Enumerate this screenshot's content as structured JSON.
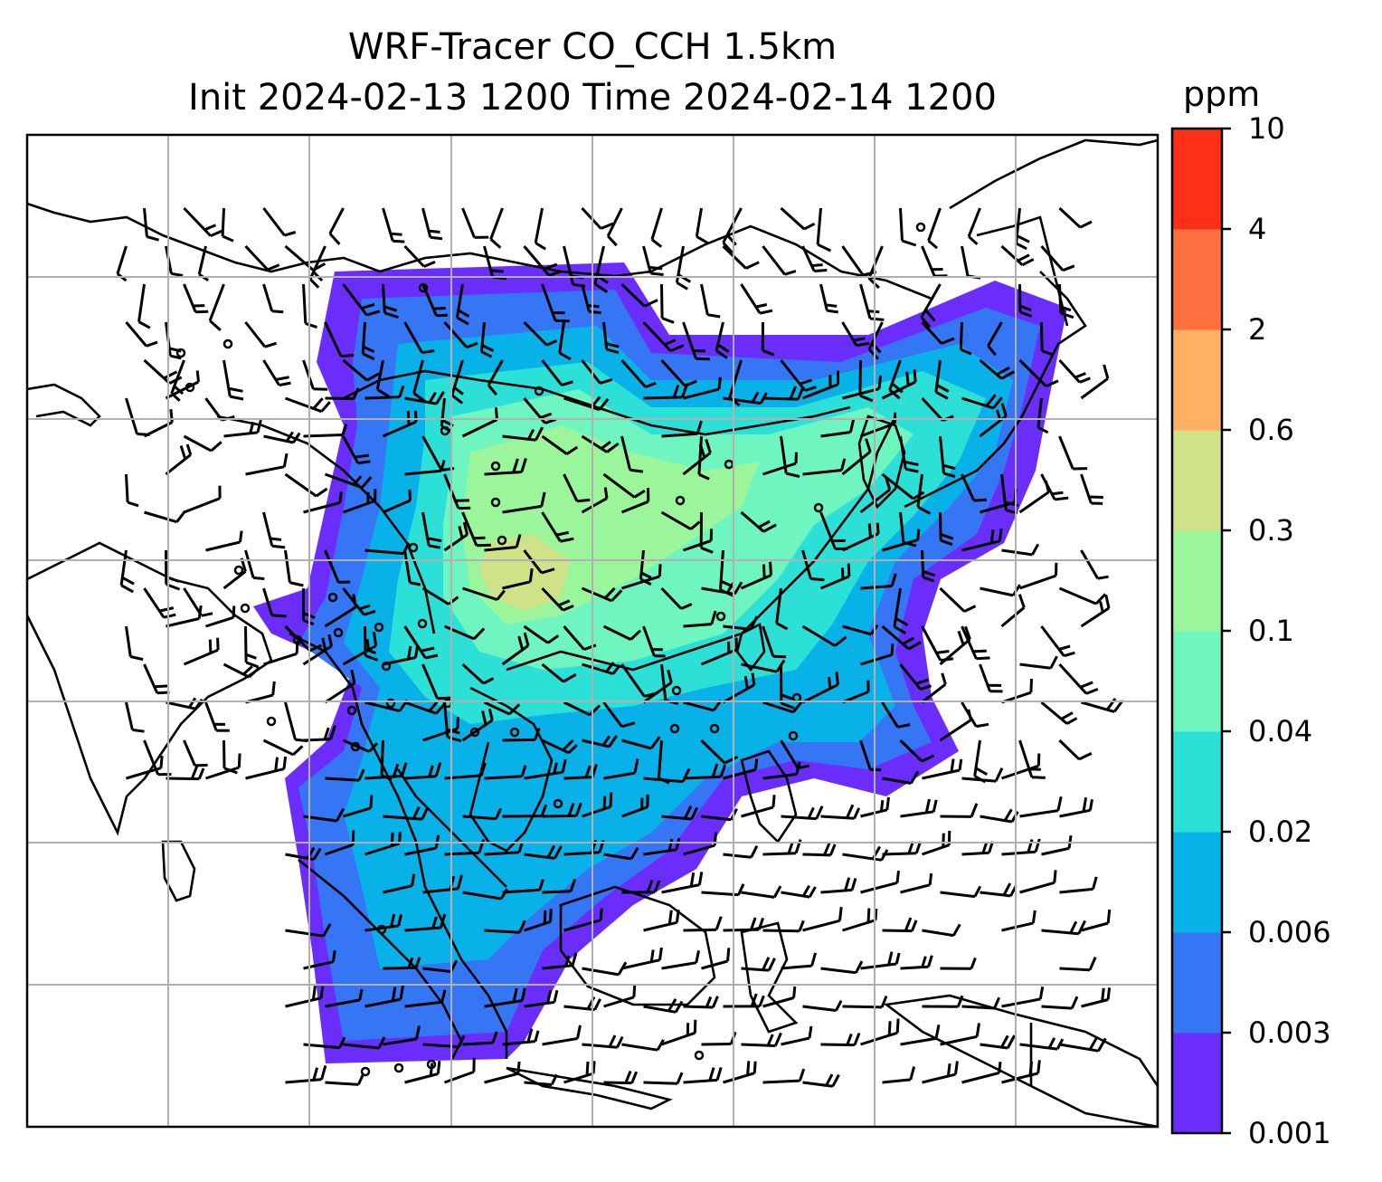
{
  "title_line1": "WRF-Tracer CO_CCH 1.5km",
  "title_line2": "Init 2024-02-13 1200 Time 2024-02-14 1200",
  "colorbar": {
    "units": "ppm",
    "ticks": [
      "0.001",
      "0.003",
      "0.006",
      "0.02",
      "0.04",
      "0.1",
      "0.3",
      "0.6",
      "2",
      "4",
      "10"
    ],
    "colors": [
      "#6a2dfb",
      "#3476f4",
      "#08b2e8",
      "#2ce0d8",
      "#6ef5c0",
      "#9bf59a",
      "#cfe287",
      "#ffb062",
      "#ff7040",
      "#ff2e17"
    ]
  },
  "map": {
    "gridlines": true,
    "field_name": "CO_CCH",
    "level": "1.5km",
    "overlay": "wind barbs"
  }
}
